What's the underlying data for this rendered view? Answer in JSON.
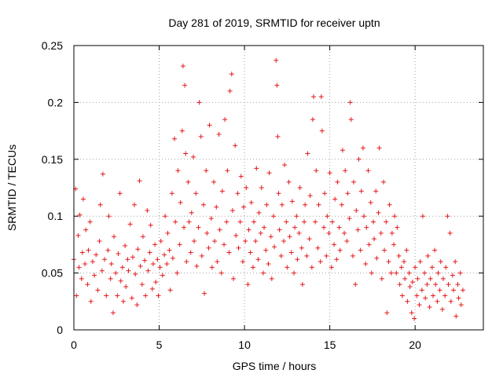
{
  "chart_data": {
    "type": "scatter",
    "title": "Day 281 of 2019, SRMTID for receiver uptn",
    "xlabel": "GPS time / hours",
    "ylabel": "SRMTID / TECUs",
    "xlim": [
      0,
      24
    ],
    "ylim": [
      0,
      0.25
    ],
    "xticks": [
      0,
      5,
      10,
      15,
      20
    ],
    "xtick_labels": [
      "0",
      "5",
      "10",
      "15",
      "20"
    ],
    "yticks": [
      0,
      0.05,
      0.1,
      0.15,
      0.2,
      0.25
    ],
    "ytick_labels": [
      "0",
      "0.05",
      "0.1",
      "0.15",
      "0.2",
      "0.25"
    ],
    "grid": true,
    "marker": "+",
    "color": "#e41a1c",
    "series": [
      {
        "name": "SRMTID",
        "points": [
          [
            0.0,
            0.062
          ],
          [
            0.1,
            0.124
          ],
          [
            0.15,
            0.03
          ],
          [
            0.25,
            0.083
          ],
          [
            0.3,
            0.055
          ],
          [
            0.35,
            0.101
          ],
          [
            0.45,
            0.045
          ],
          [
            0.5,
            0.068
          ],
          [
            0.55,
            0.115
          ],
          [
            0.65,
            0.058
          ],
          [
            0.7,
            0.088
          ],
          [
            0.8,
            0.04
          ],
          [
            0.85,
            0.07
          ],
          [
            0.95,
            0.095
          ],
          [
            1.0,
            0.025
          ],
          [
            1.1,
            0.06
          ],
          [
            1.2,
            0.048
          ],
          [
            1.3,
            0.066
          ],
          [
            1.4,
            0.035
          ],
          [
            1.5,
            0.078
          ],
          [
            1.55,
            0.11
          ],
          [
            1.65,
            0.052
          ],
          [
            1.7,
            0.137
          ],
          [
            1.8,
            0.062
          ],
          [
            1.9,
            0.03
          ],
          [
            2.0,
            0.07
          ],
          [
            2.05,
            0.1
          ],
          [
            2.15,
            0.045
          ],
          [
            2.2,
            0.058
          ],
          [
            2.3,
            0.015
          ],
          [
            2.35,
            0.082
          ],
          [
            2.45,
            0.05
          ],
          [
            2.55,
            0.03
          ],
          [
            2.6,
            0.067
          ],
          [
            2.7,
            0.12
          ],
          [
            2.75,
            0.043
          ],
          [
            2.85,
            0.055
          ],
          [
            2.9,
            0.025
          ],
          [
            3.0,
            0.074
          ],
          [
            3.05,
            0.038
          ],
          [
            3.15,
            0.062
          ],
          [
            3.2,
            0.052
          ],
          [
            3.3,
            0.093
          ],
          [
            3.4,
            0.028
          ],
          [
            3.45,
            0.064
          ],
          [
            3.55,
            0.11
          ],
          [
            3.6,
            0.049
          ],
          [
            3.7,
            0.022
          ],
          [
            3.75,
            0.071
          ],
          [
            3.85,
            0.131
          ],
          [
            3.9,
            0.056
          ],
          [
            4.0,
            0.04
          ],
          [
            4.05,
            0.082
          ],
          [
            4.15,
            0.061
          ],
          [
            4.2,
            0.03
          ],
          [
            4.3,
            0.105
          ],
          [
            4.35,
            0.052
          ],
          [
            4.45,
            0.068
          ],
          [
            4.5,
            0.092
          ],
          [
            4.6,
            0.036
          ],
          [
            4.65,
            0.058
          ],
          [
            4.75,
            0.075
          ],
          [
            4.8,
            0.042
          ],
          [
            4.9,
            0.062
          ],
          [
            4.95,
            0.03
          ],
          [
            5.05,
            0.055
          ],
          [
            5.1,
            0.078
          ],
          [
            5.2,
            0.048
          ],
          [
            5.3,
            0.066
          ],
          [
            5.35,
            0.1
          ],
          [
            5.45,
            0.058
          ],
          [
            5.5,
            0.085
          ],
          [
            5.6,
            0.07
          ],
          [
            5.65,
            0.035
          ],
          [
            5.75,
            0.12
          ],
          [
            5.8,
            0.063
          ],
          [
            5.9,
            0.168
          ],
          [
            5.95,
            0.095
          ],
          [
            6.05,
            0.05
          ],
          [
            6.1,
            0.14
          ],
          [
            6.2,
            0.075
          ],
          [
            6.25,
            0.112
          ],
          [
            6.35,
            0.175
          ],
          [
            6.4,
            0.232
          ],
          [
            6.45,
            0.09
          ],
          [
            6.5,
            0.215
          ],
          [
            6.55,
            0.155
          ],
          [
            6.6,
            0.06
          ],
          [
            6.7,
            0.13
          ],
          [
            6.75,
            0.095
          ],
          [
            6.85,
            0.068
          ],
          [
            6.9,
            0.103
          ],
          [
            7.0,
            0.152
          ],
          [
            7.05,
            0.078
          ],
          [
            7.15,
            0.12
          ],
          [
            7.2,
            0.056
          ],
          [
            7.3,
            0.09
          ],
          [
            7.35,
            0.2
          ],
          [
            7.45,
            0.17
          ],
          [
            7.5,
            0.065
          ],
          [
            7.6,
            0.11
          ],
          [
            7.65,
            0.032
          ],
          [
            7.75,
            0.14
          ],
          [
            7.8,
            0.085
          ],
          [
            7.9,
            0.072
          ],
          [
            7.95,
            0.18
          ],
          [
            8.05,
            0.098
          ],
          [
            8.1,
            0.055
          ],
          [
            8.2,
            0.13
          ],
          [
            8.25,
            0.078
          ],
          [
            8.35,
            0.108
          ],
          [
            8.4,
            0.06
          ],
          [
            8.5,
            0.172
          ],
          [
            8.55,
            0.088
          ],
          [
            8.65,
            0.05
          ],
          [
            8.7,
            0.122
          ],
          [
            8.8,
            0.075
          ],
          [
            8.85,
            0.185
          ],
          [
            8.95,
            0.095
          ],
          [
            9.0,
            0.14
          ],
          [
            9.1,
            0.068
          ],
          [
            9.15,
            0.21
          ],
          [
            9.25,
            0.225
          ],
          [
            9.3,
            0.105
          ],
          [
            9.35,
            0.045
          ],
          [
            9.45,
            0.162
          ],
          [
            9.5,
            0.083
          ],
          [
            9.6,
            0.12
          ],
          [
            9.65,
            0.072
          ],
          [
            9.75,
            0.095
          ],
          [
            9.8,
            0.135
          ],
          [
            9.9,
            0.06
          ],
          [
            9.95,
            0.108
          ],
          [
            10.05,
            0.078
          ],
          [
            10.1,
            0.125
          ],
          [
            10.2,
            0.04
          ],
          [
            10.25,
            0.088
          ],
          [
            10.35,
            0.068
          ],
          [
            10.4,
            0.112
          ],
          [
            10.5,
            0.055
          ],
          [
            10.55,
            0.095
          ],
          [
            10.65,
            0.078
          ],
          [
            10.7,
            0.142
          ],
          [
            10.8,
            0.062
          ],
          [
            10.85,
            0.103
          ],
          [
            10.95,
            0.085
          ],
          [
            11.0,
            0.125
          ],
          [
            11.1,
            0.05
          ],
          [
            11.15,
            0.09
          ],
          [
            11.25,
            0.07
          ],
          [
            11.3,
            0.11
          ],
          [
            11.4,
            0.058
          ],
          [
            11.45,
            0.138
          ],
          [
            11.55,
            0.082
          ],
          [
            11.6,
            0.045
          ],
          [
            11.7,
            0.1
          ],
          [
            11.75,
            0.073
          ],
          [
            11.85,
            0.237
          ],
          [
            11.9,
            0.215
          ],
          [
            11.95,
            0.17
          ],
          [
            12.0,
            0.12
          ],
          [
            12.05,
            0.088
          ],
          [
            12.15,
            0.065
          ],
          [
            12.2,
            0.11
          ],
          [
            12.3,
            0.078
          ],
          [
            12.35,
            0.145
          ],
          [
            12.45,
            0.095
          ],
          [
            12.5,
            0.055
          ],
          [
            12.6,
            0.13
          ],
          [
            12.65,
            0.082
          ],
          [
            12.75,
            0.068
          ],
          [
            12.8,
            0.113
          ],
          [
            12.9,
            0.05
          ],
          [
            12.95,
            0.09
          ],
          [
            13.05,
            0.1
          ],
          [
            13.1,
            0.062
          ],
          [
            13.2,
            0.085
          ],
          [
            13.25,
            0.125
          ],
          [
            13.35,
            0.072
          ],
          [
            13.4,
            0.04
          ],
          [
            13.5,
            0.095
          ],
          [
            13.55,
            0.11
          ],
          [
            13.65,
            0.065
          ],
          [
            13.7,
            0.155
          ],
          [
            13.8,
            0.08
          ],
          [
            13.85,
            0.118
          ],
          [
            13.95,
            0.055
          ],
          [
            14.0,
            0.185
          ],
          [
            14.05,
            0.205
          ],
          [
            14.15,
            0.095
          ],
          [
            14.2,
            0.14
          ],
          [
            14.3,
            0.072
          ],
          [
            14.35,
            0.11
          ],
          [
            14.45,
            0.06
          ],
          [
            14.5,
            0.205
          ],
          [
            14.55,
            0.175
          ],
          [
            14.65,
            0.09
          ],
          [
            14.7,
            0.12
          ],
          [
            14.8,
            0.065
          ],
          [
            14.85,
            0.1
          ],
          [
            14.95,
            0.085
          ],
          [
            15.0,
            0.138
          ],
          [
            15.1,
            0.055
          ],
          [
            15.15,
            0.095
          ],
          [
            15.25,
            0.075
          ],
          [
            15.3,
            0.115
          ],
          [
            15.4,
            0.062
          ],
          [
            15.45,
            0.13
          ],
          [
            15.55,
            0.09
          ],
          [
            15.6,
            0.07
          ],
          [
            15.7,
            0.11
          ],
          [
            15.75,
            0.158
          ],
          [
            15.85,
            0.085
          ],
          [
            15.9,
            0.14
          ],
          [
            16.0,
            0.078
          ],
          [
            16.05,
            0.12
          ],
          [
            16.15,
            0.098
          ],
          [
            16.2,
            0.2
          ],
          [
            16.25,
            0.185
          ],
          [
            16.35,
            0.065
          ],
          [
            16.4,
            0.13
          ],
          [
            16.5,
            0.04
          ],
          [
            16.55,
            0.105
          ],
          [
            16.65,
            0.088
          ],
          [
            16.7,
            0.15
          ],
          [
            16.8,
            0.07
          ],
          [
            16.85,
            0.122
          ],
          [
            16.95,
            0.16
          ],
          [
            17.0,
            0.1
          ],
          [
            17.1,
            0.058
          ],
          [
            17.15,
            0.09
          ],
          [
            17.25,
            0.14
          ],
          [
            17.3,
            0.075
          ],
          [
            17.4,
            0.112
          ],
          [
            17.45,
            0.05
          ],
          [
            17.55,
            0.095
          ],
          [
            17.6,
            0.08
          ],
          [
            17.7,
            0.122
          ],
          [
            17.75,
            0.063
          ],
          [
            17.85,
            0.103
          ],
          [
            17.9,
            0.16
          ],
          [
            18.0,
            0.085
          ],
          [
            18.05,
            0.045
          ],
          [
            18.15,
            0.13
          ],
          [
            18.2,
            0.07
          ],
          [
            18.3,
            0.095
          ],
          [
            18.35,
            0.015
          ],
          [
            18.45,
            0.06
          ],
          [
            18.5,
            0.11
          ],
          [
            18.6,
            0.05
          ],
          [
            18.65,
            0.085
          ],
          [
            18.75,
            0.075
          ],
          [
            18.8,
            0.1
          ],
          [
            18.9,
            0.05
          ],
          [
            18.95,
            0.09
          ],
          [
            19.05,
            0.065
          ],
          [
            19.1,
            0.04
          ],
          [
            19.2,
            0.055
          ],
          [
            19.25,
            0.03
          ],
          [
            19.35,
            0.06
          ],
          [
            19.4,
            0.045
          ],
          [
            19.5,
            0.07
          ],
          [
            19.55,
            0.025
          ],
          [
            19.65,
            0.05
          ],
          [
            19.7,
            0.038
          ],
          [
            19.8,
            0.015
          ],
          [
            19.85,
            0.042
          ],
          [
            19.95,
            0.01
          ],
          [
            20.0,
            0.055
          ],
          [
            20.1,
            0.03
          ],
          [
            20.15,
            0.045
          ],
          [
            20.25,
            0.022
          ],
          [
            20.3,
            0.06
          ],
          [
            20.4,
            0.035
          ],
          [
            20.45,
            0.1
          ],
          [
            20.55,
            0.05
          ],
          [
            20.6,
            0.028
          ],
          [
            20.7,
            0.04
          ],
          [
            20.75,
            0.065
          ],
          [
            20.85,
            0.02
          ],
          [
            20.9,
            0.045
          ],
          [
            21.0,
            0.055
          ],
          [
            21.05,
            0.03
          ],
          [
            21.15,
            0.07
          ],
          [
            21.2,
            0.04
          ],
          [
            21.3,
            0.025
          ],
          [
            21.35,
            0.05
          ],
          [
            21.45,
            0.035
          ],
          [
            21.5,
            0.06
          ],
          [
            21.6,
            0.018
          ],
          [
            21.65,
            0.045
          ],
          [
            21.75,
            0.03
          ],
          [
            21.8,
            0.055
          ],
          [
            21.9,
            0.1
          ],
          [
            21.95,
            0.04
          ],
          [
            22.05,
            0.085
          ],
          [
            22.1,
            0.025
          ],
          [
            22.2,
            0.048
          ],
          [
            22.25,
            0.035
          ],
          [
            22.35,
            0.06
          ],
          [
            22.4,
            0.012
          ],
          [
            22.5,
            0.04
          ],
          [
            22.55,
            0.028
          ],
          [
            22.65,
            0.05
          ],
          [
            22.7,
            0.022
          ],
          [
            22.8,
            0.035
          ]
        ]
      }
    ]
  }
}
